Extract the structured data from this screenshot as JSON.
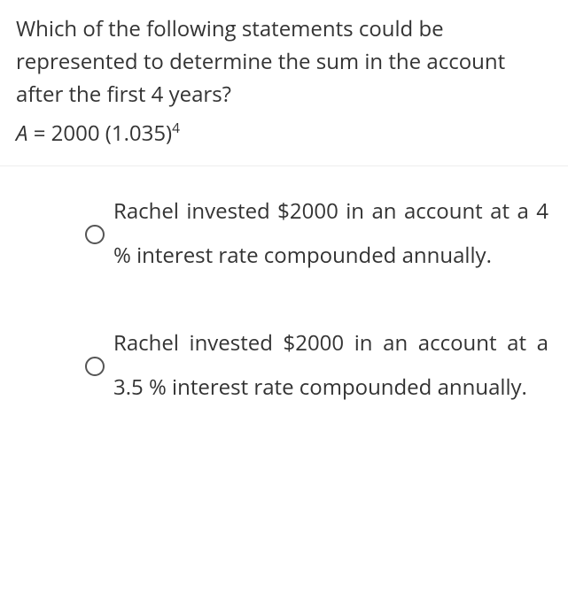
{
  "question": {
    "prompt": "Which of the following statements could be represented to determine the sum in the account after the first 4 years?",
    "formula_var": "A",
    "formula_eq": " = 2000 (1.035)",
    "formula_exp": "4"
  },
  "options": [
    {
      "text": "Rachel invested $2000 in an account at a 4 % interest rate compounded annually."
    },
    {
      "text": "Rachel invested $2000 in an account at a 3.5 % interest rate compounded annually."
    }
  ],
  "colors": {
    "text": "#333333",
    "divider": "#eeeeee",
    "radio_border": "#555555",
    "background": "#ffffff"
  }
}
